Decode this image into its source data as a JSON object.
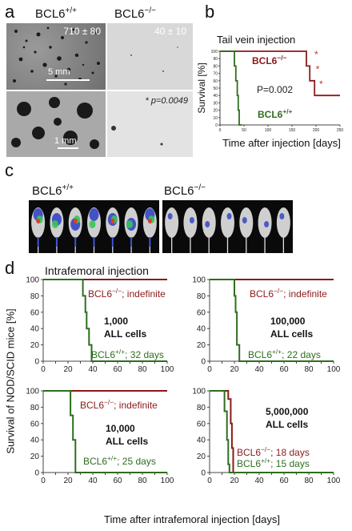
{
  "panel_a": {
    "label": "a",
    "col1_header": "BCL6",
    "col1_sup": "+/+",
    "col2_header": "BCL6",
    "col2_sup": "−/−",
    "count_left": "710 ± 80",
    "count_right": "40 ± 10",
    "scale_top": "5 mm",
    "scale_bottom": "1 mm",
    "pvalue": "p=0.0049",
    "pvalue_prefix": "*"
  },
  "panel_b": {
    "label": "b",
    "title": "Tail vein injection",
    "pvalue": "P=0.002",
    "star": "*"
  },
  "panel_c": {
    "label": "c",
    "left_header": "BCL6",
    "left_sup": "+/+",
    "right_header": "BCL6",
    "right_sup": "−/−"
  },
  "panel_d": {
    "label": "d",
    "title": "Intrafemoral injection",
    "shared_ylabel": "Survival of NOD/SCID mice [%]",
    "shared_xlabel": "Time after intrafemoral injection [days]"
  },
  "colors": {
    "ko": "#8b1a1a",
    "wt": "#2e6e1e"
  },
  "chart_data": [
    {
      "id": "b",
      "type": "line",
      "title": "Tail vein injection",
      "xlabel": "Time after injection [days]",
      "ylabel": "Survival [%]",
      "xlim": [
        0,
        250
      ],
      "ylim": [
        0,
        100
      ],
      "xticks": [
        0,
        50,
        100,
        150,
        200,
        250
      ],
      "yticks": [
        0,
        10,
        20,
        30,
        40,
        50,
        60,
        70,
        80,
        90,
        100
      ],
      "series": [
        {
          "name": "BCL6",
          "sup": "−/−",
          "color": "#8b1a1a",
          "steps": [
            [
              0,
              100
            ],
            [
              180,
              100
            ],
            [
              180,
              80
            ],
            [
              187,
              80
            ],
            [
              187,
              60
            ],
            [
              197,
              60
            ],
            [
              197,
              40
            ],
            [
              250,
              40
            ]
          ]
        },
        {
          "name": "BCL6",
          "sup": "+/+",
          "color": "#2e6e1e",
          "steps": [
            [
              0,
              100
            ],
            [
              30,
              100
            ],
            [
              30,
              80
            ],
            [
              33,
              80
            ],
            [
              33,
              60
            ],
            [
              36,
              60
            ],
            [
              36,
              40
            ],
            [
              38,
              40
            ],
            [
              38,
              20
            ],
            [
              40,
              20
            ],
            [
              40,
              0
            ],
            [
              46,
              0
            ]
          ]
        }
      ]
    },
    {
      "id": "d1",
      "type": "line",
      "annotation_l1": "1,000",
      "annotation_l2": "ALL cells",
      "xlim": [
        0,
        100
      ],
      "ylim": [
        0,
        100
      ],
      "xticks": [
        0,
        10,
        20,
        30,
        40,
        50,
        60,
        70,
        80,
        90,
        100
      ],
      "yticks": [
        0,
        20,
        40,
        60,
        80,
        100
      ],
      "series": [
        {
          "name": "BCL6",
          "sup": "−/−",
          "suffix": "; indefinite",
          "color": "#8b1a1a",
          "steps": [
            [
              0,
              100
            ],
            [
              100,
              100
            ]
          ]
        },
        {
          "name": "BCL6",
          "sup": "+/+",
          "suffix": "; 32 days",
          "color": "#2e6e1e",
          "steps": [
            [
              0,
              100
            ],
            [
              32,
              100
            ],
            [
              32,
              80
            ],
            [
              34,
              80
            ],
            [
              34,
              60
            ],
            [
              35,
              60
            ],
            [
              35,
              40
            ],
            [
              37,
              40
            ],
            [
              37,
              20
            ],
            [
              39,
              20
            ],
            [
              39,
              0
            ],
            [
              100,
              0
            ]
          ]
        }
      ]
    },
    {
      "id": "d2",
      "type": "line",
      "annotation_l1": "100,000",
      "annotation_l2": "ALL cells",
      "xlim": [
        0,
        100
      ],
      "ylim": [
        0,
        100
      ],
      "xticks": [
        0,
        10,
        20,
        30,
        40,
        50,
        60,
        70,
        80,
        90,
        100
      ],
      "yticks": [
        0,
        20,
        40,
        60,
        80,
        100
      ],
      "series": [
        {
          "name": "BCL6",
          "sup": "−/−",
          "suffix": "; indefinite",
          "color": "#8b1a1a",
          "steps": [
            [
              0,
              100
            ],
            [
              100,
              100
            ]
          ]
        },
        {
          "name": "BCL6",
          "sup": "+/+",
          "suffix": "; 22 days",
          "color": "#2e6e1e",
          "steps": [
            [
              0,
              100
            ],
            [
              20,
              100
            ],
            [
              20,
              80
            ],
            [
              21,
              80
            ],
            [
              21,
              60
            ],
            [
              22,
              60
            ],
            [
              22,
              20
            ],
            [
              24,
              20
            ],
            [
              24,
              0
            ],
            [
              100,
              0
            ]
          ]
        }
      ]
    },
    {
      "id": "d3",
      "type": "line",
      "annotation_l1": "10,000",
      "annotation_l2": "ALL cells",
      "xlim": [
        0,
        100
      ],
      "ylim": [
        0,
        100
      ],
      "xticks": [
        0,
        10,
        20,
        30,
        40,
        50,
        60,
        70,
        80,
        90,
        100
      ],
      "yticks": [
        0,
        20,
        40,
        60,
        80,
        100
      ],
      "series": [
        {
          "name": "BCL6",
          "sup": "−/−",
          "suffix": "; indefinite",
          "color": "#8b1a1a",
          "steps": [
            [
              0,
              100
            ],
            [
              100,
              100
            ]
          ]
        },
        {
          "name": "BCL6",
          "sup": "+/+",
          "suffix": "; 25 days",
          "color": "#2e6e1e",
          "steps": [
            [
              0,
              100
            ],
            [
              22,
              100
            ],
            [
              22,
              70
            ],
            [
              24,
              70
            ],
            [
              24,
              40
            ],
            [
              26,
              40
            ],
            [
              26,
              0
            ],
            [
              100,
              0
            ]
          ]
        }
      ]
    },
    {
      "id": "d4",
      "type": "line",
      "annotation_l1": "5,000,000",
      "annotation_l2": "ALL cells",
      "xlim": [
        0,
        100
      ],
      "ylim": [
        0,
        100
      ],
      "xticks": [
        0,
        10,
        20,
        30,
        40,
        50,
        60,
        70,
        80,
        90,
        100
      ],
      "yticks": [
        0,
        20,
        40,
        60,
        80,
        100
      ],
      "series": [
        {
          "name": "BCL6",
          "sup": "−/−",
          "suffix": "; 18 days",
          "color": "#8b1a1a",
          "steps": [
            [
              0,
              100
            ],
            [
              15,
              100
            ],
            [
              15,
              90
            ],
            [
              17,
              90
            ],
            [
              17,
              60
            ],
            [
              18,
              60
            ],
            [
              18,
              30
            ],
            [
              19,
              30
            ],
            [
              19,
              0
            ],
            [
              100,
              0
            ]
          ]
        },
        {
          "name": "BCL6",
          "sup": "+/+",
          "suffix": "; 15 days",
          "color": "#2e6e1e",
          "steps": [
            [
              0,
              100
            ],
            [
              12,
              100
            ],
            [
              12,
              75
            ],
            [
              14,
              75
            ],
            [
              14,
              40
            ],
            [
              15,
              40
            ],
            [
              15,
              10
            ],
            [
              16,
              10
            ],
            [
              16,
              0
            ],
            [
              100,
              0
            ]
          ]
        }
      ]
    }
  ]
}
